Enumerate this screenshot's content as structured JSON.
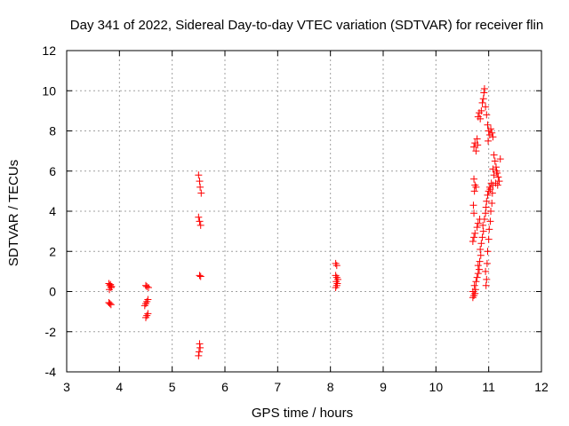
{
  "chart_data": {
    "type": "scatter",
    "title": "Day 341 of 2022, Sidereal Day-to-day VTEC variation (SDTVAR) for receiver flin",
    "xlabel": "GPS time / hours",
    "ylabel": "SDTVAR / TECUs",
    "xlim": [
      3,
      12
    ],
    "ylim": [
      -4,
      12
    ],
    "x_ticks": [
      "3",
      "4",
      "5",
      "6",
      "7",
      "8",
      "9",
      "10",
      "11",
      "12"
    ],
    "y_ticks": [
      "-4",
      "-2",
      "0",
      "2",
      "4",
      "6",
      "8",
      "10",
      "12"
    ],
    "grid": true,
    "marker": "+",
    "color": "#ff0000",
    "series": [
      {
        "name": "SDTVAR",
        "points": [
          [
            3.8,
            0.4
          ],
          [
            3.82,
            0.3
          ],
          [
            3.84,
            0.2
          ],
          [
            3.81,
            0.1
          ],
          [
            3.83,
            0.35
          ],
          [
            3.85,
            0.25
          ],
          [
            3.8,
            -0.55
          ],
          [
            3.82,
            -0.6
          ],
          [
            3.84,
            -0.65
          ],
          [
            4.5,
            0.3
          ],
          [
            4.52,
            0.25
          ],
          [
            4.55,
            0.2
          ],
          [
            4.48,
            -0.7
          ],
          [
            4.5,
            -0.6
          ],
          [
            4.52,
            -0.5
          ],
          [
            4.54,
            -0.4
          ],
          [
            4.5,
            -1.3
          ],
          [
            4.52,
            -1.2
          ],
          [
            4.54,
            -1.1
          ],
          [
            5.5,
            5.8
          ],
          [
            5.52,
            5.5
          ],
          [
            5.53,
            5.2
          ],
          [
            5.55,
            4.9
          ],
          [
            5.5,
            3.7
          ],
          [
            5.52,
            3.5
          ],
          [
            5.54,
            3.3
          ],
          [
            5.52,
            0.8
          ],
          [
            5.54,
            0.75
          ],
          [
            5.52,
            -2.6
          ],
          [
            5.53,
            -2.8
          ],
          [
            5.51,
            -3.0
          ],
          [
            5.5,
            -3.2
          ],
          [
            8.1,
            1.4
          ],
          [
            8.12,
            1.3
          ],
          [
            8.1,
            0.8
          ],
          [
            8.12,
            0.7
          ],
          [
            8.14,
            0.6
          ],
          [
            8.11,
            0.5
          ],
          [
            8.13,
            0.4
          ],
          [
            8.12,
            0.3
          ],
          [
            8.1,
            0.2
          ],
          [
            10.7,
            -0.3
          ],
          [
            10.72,
            -0.2
          ],
          [
            10.74,
            -0.1
          ],
          [
            10.7,
            0.0
          ],
          [
            10.75,
            0.1
          ],
          [
            10.73,
            0.3
          ],
          [
            10.76,
            0.5
          ],
          [
            10.78,
            0.7
          ],
          [
            10.8,
            0.9
          ],
          [
            10.82,
            1.1
          ],
          [
            10.8,
            1.3
          ],
          [
            10.83,
            1.5
          ],
          [
            10.85,
            1.8
          ],
          [
            10.84,
            2.1
          ],
          [
            10.86,
            2.4
          ],
          [
            10.88,
            2.7
          ],
          [
            10.9,
            3.0
          ],
          [
            10.89,
            3.3
          ],
          [
            10.92,
            3.6
          ],
          [
            10.94,
            3.9
          ],
          [
            10.95,
            4.2
          ],
          [
            10.96,
            4.5
          ],
          [
            10.98,
            4.8
          ],
          [
            11.0,
            5.0
          ],
          [
            11.02,
            5.2
          ],
          [
            11.05,
            5.4
          ],
          [
            11.03,
            5.1
          ],
          [
            11.07,
            4.9
          ],
          [
            11.08,
            5.3
          ],
          [
            10.7,
            2.5
          ],
          [
            10.72,
            2.7
          ],
          [
            10.74,
            2.9
          ],
          [
            10.78,
            3.2
          ],
          [
            10.8,
            3.4
          ],
          [
            10.83,
            3.6
          ],
          [
            10.72,
            3.9
          ],
          [
            10.71,
            4.3
          ],
          [
            10.73,
            5.0
          ],
          [
            10.74,
            5.3
          ],
          [
            10.72,
            5.6
          ],
          [
            10.76,
            5.2
          ],
          [
            10.72,
            7.2
          ],
          [
            10.74,
            7.4
          ],
          [
            10.76,
            7.0
          ],
          [
            10.78,
            7.6
          ],
          [
            10.79,
            7.3
          ],
          [
            10.8,
            8.7
          ],
          [
            10.82,
            8.9
          ],
          [
            10.84,
            8.6
          ],
          [
            10.86,
            9.0
          ],
          [
            10.88,
            9.4
          ],
          [
            10.9,
            9.6
          ],
          [
            10.91,
            9.9
          ],
          [
            10.92,
            10.1
          ],
          [
            10.94,
            9.2
          ],
          [
            10.96,
            8.8
          ],
          [
            10.98,
            8.3
          ],
          [
            11.0,
            8.0
          ],
          [
            11.02,
            7.8
          ],
          [
            11.04,
            8.1
          ],
          [
            11.06,
            7.9
          ],
          [
            11.08,
            7.7
          ],
          [
            10.99,
            7.5
          ],
          [
            11.1,
            6.8
          ],
          [
            11.12,
            6.5
          ],
          [
            11.14,
            6.2
          ],
          [
            11.16,
            5.9
          ],
          [
            11.18,
            5.7
          ],
          [
            11.2,
            5.5
          ],
          [
            11.15,
            6.0
          ],
          [
            11.13,
            5.4
          ],
          [
            11.17,
            5.3
          ],
          [
            11.22,
            6.6
          ],
          [
            11.1,
            5.8
          ],
          [
            11.08,
            6.1
          ],
          [
            10.95,
            0.3
          ],
          [
            10.96,
            0.6
          ],
          [
            10.94,
            1.0
          ],
          [
            10.97,
            1.4
          ],
          [
            10.98,
            2.0
          ],
          [
            11.0,
            2.6
          ],
          [
            11.01,
            3.1
          ],
          [
            11.03,
            3.5
          ],
          [
            11.04,
            4.0
          ],
          [
            11.06,
            4.4
          ]
        ]
      }
    ]
  }
}
